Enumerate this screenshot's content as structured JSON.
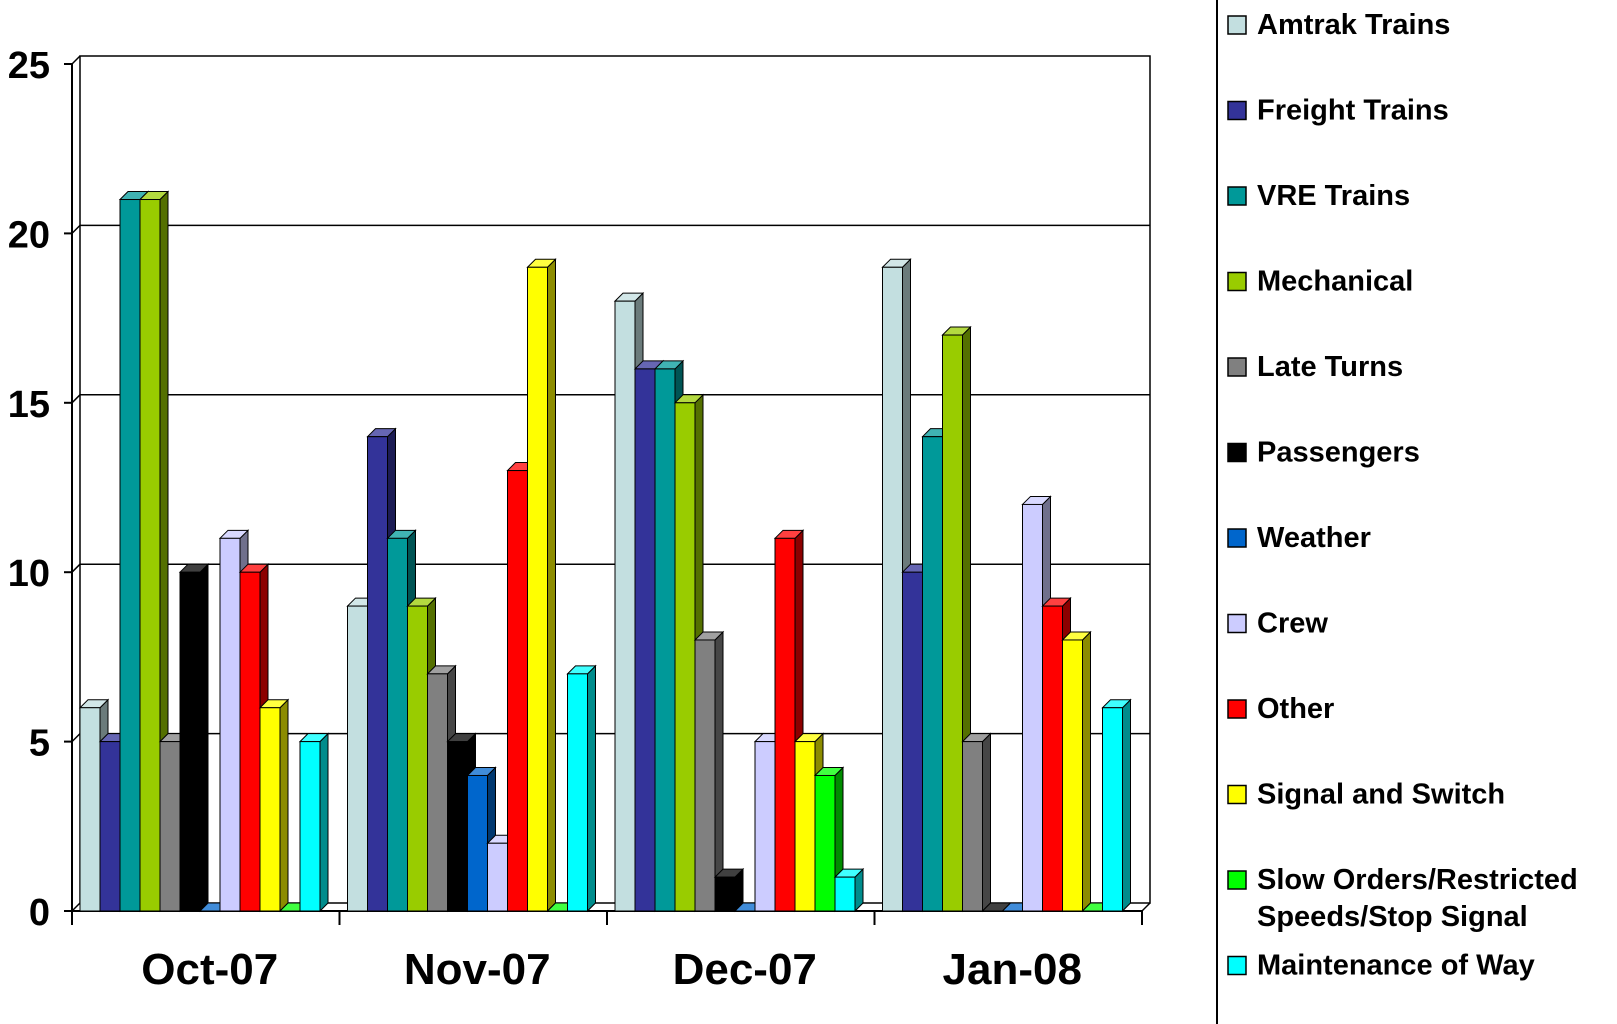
{
  "chart_data": {
    "type": "bar",
    "title": "",
    "xlabel": "",
    "ylabel": "",
    "ylim": [
      0,
      25
    ],
    "yticks": [
      0,
      5,
      10,
      15,
      20,
      25
    ],
    "grid": true,
    "three_d": true,
    "legend_position": "right",
    "categories": [
      "Oct-07",
      "Nov-07",
      "Dec-07",
      "Jan-08"
    ],
    "series": [
      {
        "name": "Amtrak Trains",
        "color": "#c3dfe0",
        "values": [
          6,
          9,
          18,
          19
        ]
      },
      {
        "name": "Freight Trains",
        "color": "#333399",
        "values": [
          5,
          14,
          16,
          10
        ]
      },
      {
        "name": "VRE Trains",
        "color": "#009999",
        "values": [
          21,
          11,
          16,
          14
        ]
      },
      {
        "name": "Mechanical",
        "color": "#99cc00",
        "values": [
          21,
          9,
          15,
          17
        ]
      },
      {
        "name": "Late Turns",
        "color": "#808080",
        "values": [
          5,
          7,
          8,
          5
        ]
      },
      {
        "name": "Passengers",
        "color": "#000000",
        "values": [
          10,
          5,
          1,
          0
        ]
      },
      {
        "name": "Weather",
        "color": "#0066cc",
        "values": [
          0,
          4,
          0,
          0
        ]
      },
      {
        "name": "Crew",
        "color": "#ccccff",
        "values": [
          11,
          2,
          5,
          12
        ]
      },
      {
        "name": "Other",
        "color": "#ff0000",
        "values": [
          10,
          13,
          11,
          9
        ]
      },
      {
        "name": "Signal and Switch",
        "color": "#ffff00",
        "values": [
          6,
          19,
          5,
          8
        ]
      },
      {
        "name": "Slow Orders/Restricted Speeds/Stop Signal",
        "legend_lines": [
          "Slow Orders/Restricted",
          "Speeds/Stop Signal"
        ],
        "color": "#00ff00",
        "values": [
          0,
          0,
          4,
          0
        ]
      },
      {
        "name": "Maintenance of Way",
        "color": "#00ffff",
        "values": [
          5,
          7,
          1,
          6
        ]
      }
    ]
  }
}
